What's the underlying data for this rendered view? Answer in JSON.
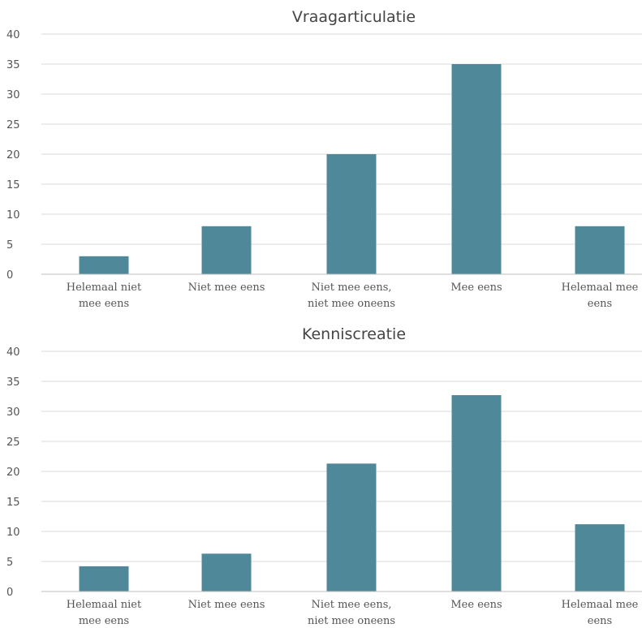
{
  "colors": {
    "bar": "#4f8898",
    "grid": "#d9d9d9",
    "text": "#555555"
  },
  "chart_data": [
    {
      "type": "bar",
      "title": "Vraagarticulatie",
      "categories": [
        [
          "Helemaal niet",
          "mee eens"
        ],
        [
          "Niet mee eens"
        ],
        [
          "Niet mee eens,",
          "niet mee oneens"
        ],
        [
          "Mee eens"
        ],
        [
          "Helemaal mee",
          "eens"
        ]
      ],
      "values": [
        3,
        8,
        20,
        35,
        8
      ],
      "yticks": [
        "0",
        "5",
        "10",
        "15",
        "20",
        "25",
        "30",
        "35",
        "40"
      ],
      "ylim": [
        0,
        40
      ],
      "grid": true,
      "legend": "none"
    },
    {
      "type": "bar",
      "title": "Kenniscreatie",
      "categories": [
        [
          "Helemaal niet",
          "mee eens"
        ],
        [
          "Niet mee eens"
        ],
        [
          "Niet mee eens,",
          "niet mee oneens"
        ],
        [
          "Mee eens"
        ],
        [
          "Helemaal mee",
          "eens"
        ]
      ],
      "values": [
        4.2,
        6.3,
        21.3,
        32.7,
        11.2
      ],
      "yticks": [
        "0",
        "5",
        "10",
        "15",
        "20",
        "25",
        "30",
        "35",
        "40"
      ],
      "ylim": [
        0,
        40
      ],
      "grid": true,
      "legend": "none"
    }
  ]
}
